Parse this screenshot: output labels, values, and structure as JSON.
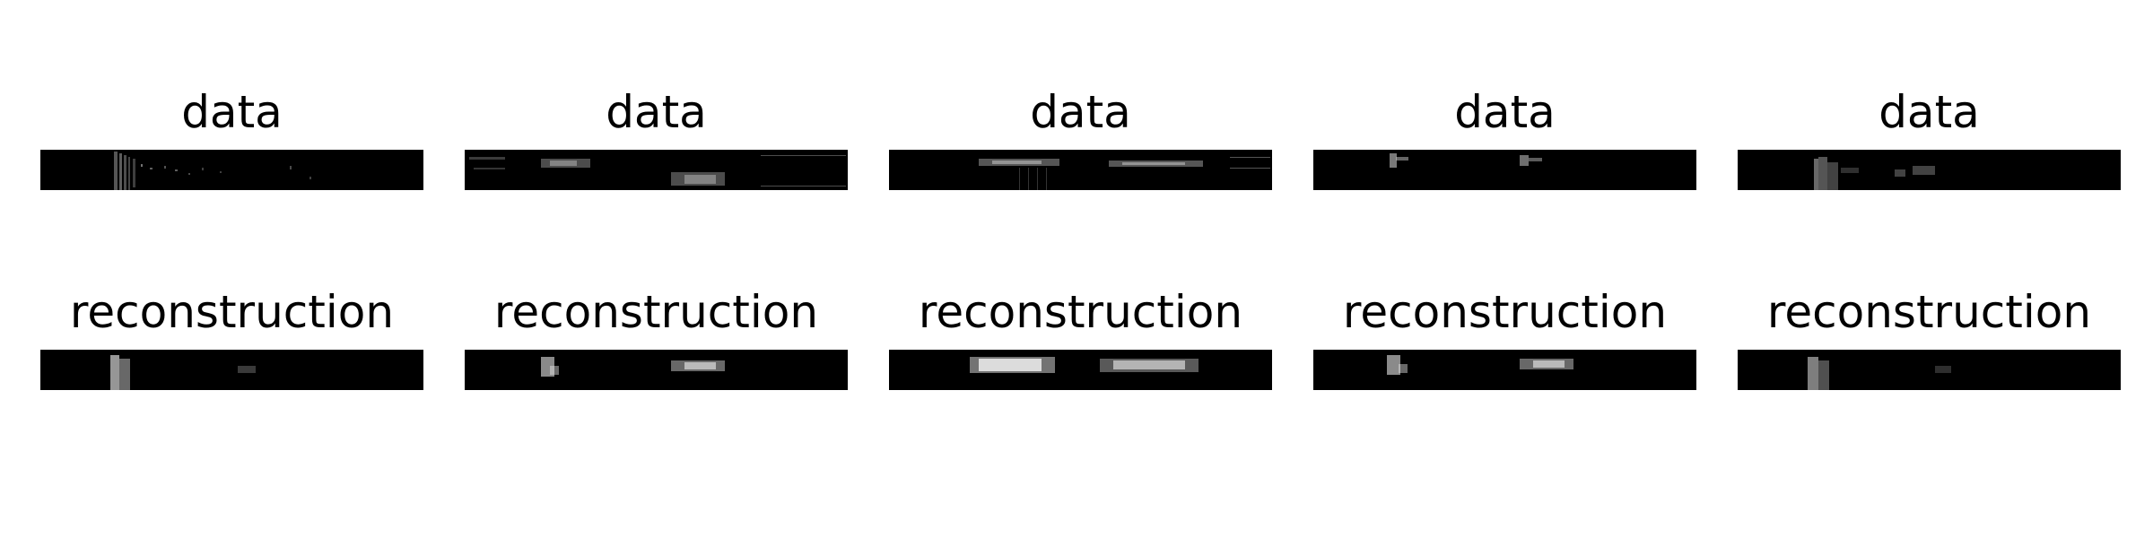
{
  "figure": {
    "background": "#ffffff",
    "image_background": "#000000",
    "rows": [
      {
        "kind": "data",
        "panels": [
          {
            "title": "data"
          },
          {
            "title": "data"
          },
          {
            "title": "data"
          },
          {
            "title": "data"
          },
          {
            "title": "data"
          }
        ]
      },
      {
        "kind": "reconstruction",
        "panels": [
          {
            "title": "reconstruction"
          },
          {
            "title": "reconstruction"
          },
          {
            "title": "reconstruction"
          },
          {
            "title": "reconstruction"
          },
          {
            "title": "reconstruction"
          }
        ]
      }
    ]
  }
}
